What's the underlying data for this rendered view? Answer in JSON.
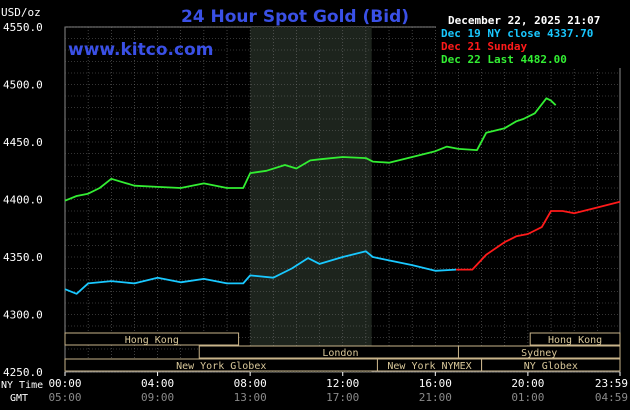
{
  "header": {
    "title": "24 Hour Spot Gold (Bid)",
    "unit_label": "USD/oz",
    "timestamp": "December 22, 2025 21:07",
    "website": "www.kitco.com"
  },
  "legend": {
    "placement": "top-right",
    "items": [
      {
        "label": "Dec 19 NY close 4337.70",
        "color": "#19c8ff"
      },
      {
        "label": "Dec 21 Sunday",
        "color": "#ff1a1a"
      },
      {
        "label": "Dec 22 Last 4482.00",
        "color": "#33ee33"
      }
    ]
  },
  "axis": {
    "ny_time_label": "NY Time",
    "gmt_label": "GMT",
    "x_ticks": [
      {
        "hour": 0,
        "ny": "00:00",
        "gmt": "05:00"
      },
      {
        "hour": 4,
        "ny": "04:00",
        "gmt": "09:00"
      },
      {
        "hour": 8,
        "ny": "08:00",
        "gmt": "13:00"
      },
      {
        "hour": 12,
        "ny": "12:00",
        "gmt": "17:00"
      },
      {
        "hour": 16,
        "ny": "16:00",
        "gmt": "21:00"
      },
      {
        "hour": 20,
        "ny": "20:00",
        "gmt": "01:00"
      },
      {
        "hour": 23.98,
        "ny": "23:59",
        "gmt": "04:59"
      }
    ],
    "y_ticks": [
      "4550.0",
      "4500.0",
      "4450.0",
      "4400.0",
      "4350.0",
      "4300.0",
      "4250.0"
    ]
  },
  "markets": [
    {
      "label": "Hong Kong",
      "start": 0,
      "end": 7.5,
      "row": 0
    },
    {
      "label": "London",
      "start": 5.8,
      "end": 18.0,
      "row": 1
    },
    {
      "label": "New York Globex",
      "start": 0,
      "end": 13.5,
      "row": 2
    },
    {
      "label": "New York NYMEX",
      "start": 13.5,
      "end": 18.0,
      "row": 2
    },
    {
      "label": "NY Globex",
      "start": 18.0,
      "end": 23.98,
      "row": 2
    },
    {
      "label": "Sydney",
      "start": 17.0,
      "end": 23.98,
      "row": 1
    },
    {
      "label": "Hong Kong",
      "start": 20.1,
      "end": 23.98,
      "row": 0
    }
  ],
  "chart_data": {
    "type": "line",
    "title": "24 Hour Spot Gold (Bid)",
    "ylabel": "USD/oz",
    "xlabel": "NY Time",
    "xlim": [
      0,
      23.98
    ],
    "ylim": [
      4250,
      4550
    ],
    "grid": true,
    "shaded_region": {
      "start": 8.0,
      "end": 13.25
    },
    "series": [
      {
        "name": "Dec 19 NY close 4337.70",
        "color": "#19c8ff",
        "x": [
          0.0,
          0.5,
          1.0,
          2.0,
          3.0,
          4.0,
          5.0,
          6.0,
          7.0,
          7.7,
          8.0,
          9.0,
          9.8,
          10.5,
          11.0,
          12.0,
          13.0,
          13.3,
          14.0,
          15.0,
          16.0,
          16.9
        ],
        "y": [
          4322,
          4318,
          4327,
          4329,
          4327,
          4332,
          4328,
          4331,
          4327,
          4327,
          4334,
          4332,
          4340,
          4349,
          4344,
          4350,
          4355,
          4350,
          4347,
          4343,
          4338,
          4339
        ]
      },
      {
        "name": "Dec 21 Sunday",
        "color": "#ff1a1a",
        "x": [
          16.9,
          17.6,
          18.2,
          19.0,
          19.5,
          20.0,
          20.6,
          21.0,
          21.5,
          22.0,
          23.0,
          23.98
        ],
        "y": [
          4339,
          4339,
          4352,
          4363,
          4368,
          4370,
          4376,
          4390,
          4390,
          4388,
          4393,
          4398
        ]
      },
      {
        "name": "Dec 22 Last 4482.00",
        "color": "#33ee33",
        "x": [
          0.0,
          0.5,
          1.0,
          1.5,
          2.0,
          3.0,
          4.0,
          5.0,
          6.0,
          7.0,
          7.7,
          8.0,
          8.7,
          9.5,
          10.0,
          10.6,
          11.0,
          12.0,
          13.0,
          13.3,
          14.0,
          15.0,
          16.0,
          16.5,
          17.0,
          17.8,
          18.2,
          19.0,
          19.5,
          19.8,
          20.3,
          20.8,
          21.0,
          21.2
        ],
        "y": [
          4399,
          4403,
          4405,
          4410,
          4418,
          4412,
          4411,
          4410,
          4414,
          4410,
          4410,
          4423,
          4425,
          4430,
          4427,
          4434,
          4435,
          4437,
          4436,
          4433,
          4432,
          4437,
          4442,
          4446,
          4444,
          4443,
          4458,
          4462,
          4468,
          4470,
          4475,
          4488,
          4486,
          4482
        ]
      }
    ]
  }
}
